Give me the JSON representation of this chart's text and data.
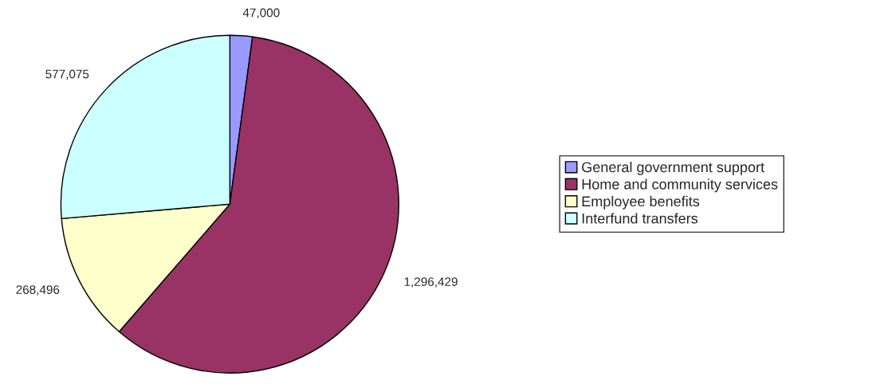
{
  "chart_data": {
    "type": "pie",
    "categories": [
      "General government support",
      "Home and community services",
      "Employee benefits",
      "Interfund transfers"
    ],
    "values": [
      47000,
      1296429,
      268496,
      577075
    ],
    "value_labels": [
      "47,000",
      "1,296,429",
      "268,496",
      "577,075"
    ],
    "colors": [
      "#9999ff",
      "#993366",
      "#ffffcc",
      "#ccffff"
    ],
    "legend": "right"
  }
}
